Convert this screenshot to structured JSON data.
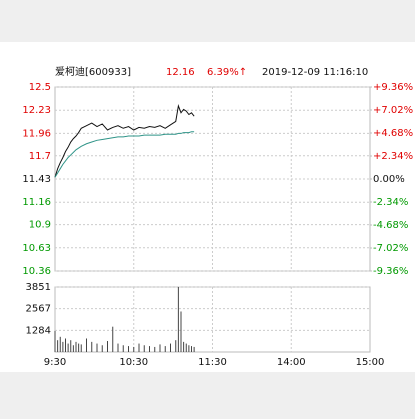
{
  "chart_data": {
    "type": "line",
    "stock": "爱柯迪[600933]",
    "price": "12.16",
    "change": "6.39%↑",
    "datetime": "2019-12-09 11:16:10",
    "x": [
      0,
      2,
      4,
      6,
      8,
      10,
      12,
      14,
      16,
      18,
      20,
      24,
      28,
      32,
      36,
      40,
      44,
      48,
      52,
      56,
      60,
      64,
      68,
      72,
      76,
      80,
      84,
      88,
      92,
      94,
      96,
      98,
      100,
      102,
      104,
      106
    ],
    "xlim": [
      0,
      240
    ],
    "xticks": [
      {
        "value": 0,
        "label": "9:30"
      },
      {
        "value": 60,
        "label": "10:30"
      },
      {
        "value": 120,
        "label": "11:30"
      },
      {
        "value": 180,
        "label": "14:00"
      },
      {
        "value": 240,
        "label": "15:00"
      }
    ],
    "series": [
      {
        "color": "#111111",
        "values": [
          11.45,
          11.55,
          11.62,
          11.68,
          11.75,
          11.8,
          11.86,
          11.9,
          11.93,
          11.97,
          12.02,
          12.05,
          12.08,
          12.04,
          12.07,
          12.0,
          12.03,
          12.05,
          12.02,
          12.04,
          12.0,
          12.03,
          12.02,
          12.04,
          12.03,
          12.05,
          12.02,
          12.06,
          12.1,
          12.28,
          12.2,
          12.24,
          12.22,
          12.18,
          12.2,
          12.16
        ]
      },
      {
        "color": "#2f9488",
        "values": [
          11.45,
          11.5,
          11.55,
          11.6,
          11.64,
          11.68,
          11.71,
          11.74,
          11.77,
          11.79,
          11.81,
          11.84,
          11.86,
          11.88,
          11.89,
          11.9,
          11.91,
          11.92,
          11.92,
          11.93,
          11.93,
          11.93,
          11.94,
          11.94,
          11.94,
          11.94,
          11.95,
          11.95,
          11.95,
          11.96,
          11.96,
          11.97,
          11.97,
          11.97,
          11.98,
          11.98
        ]
      }
    ],
    "ylim": [
      10.36,
      12.5
    ],
    "yticks": [
      12.5,
      12.23,
      11.96,
      11.7,
      11.43,
      11.16,
      10.9,
      10.63,
      10.36
    ],
    "y2lim": [
      -9.36,
      9.36
    ],
    "y2ticks": [
      {
        "value": 9.36,
        "label": "+9.36%"
      },
      {
        "value": 7.02,
        "label": "+7.02%"
      },
      {
        "value": 4.68,
        "label": "+4.68%"
      },
      {
        "value": 2.34,
        "label": "+2.34%"
      },
      {
        "value": 0,
        "label": "0.00%"
      },
      {
        "value": -2.34,
        "label": "-2.34%"
      },
      {
        "value": -4.68,
        "label": "-4.68%"
      },
      {
        "value": -7.02,
        "label": "-7.02%"
      },
      {
        "value": -9.36,
        "label": "-9.36%"
      }
    ],
    "up_color": "#e00000",
    "down_color": "#009900",
    "flat_color": "#111111",
    "grid": true,
    "volume": {
      "color": "#444444",
      "ylim": [
        0,
        3851
      ],
      "yticks": [
        3851,
        2567,
        1284
      ],
      "values": [
        1250,
        700,
        900,
        600,
        800,
        500,
        700,
        400,
        600,
        500,
        450,
        800,
        600,
        500,
        400,
        650,
        1500,
        500,
        400,
        350,
        300,
        500,
        400,
        350,
        300,
        450,
        350,
        500,
        700,
        3851,
        2400,
        600,
        500,
        400,
        350,
        300
      ]
    }
  }
}
